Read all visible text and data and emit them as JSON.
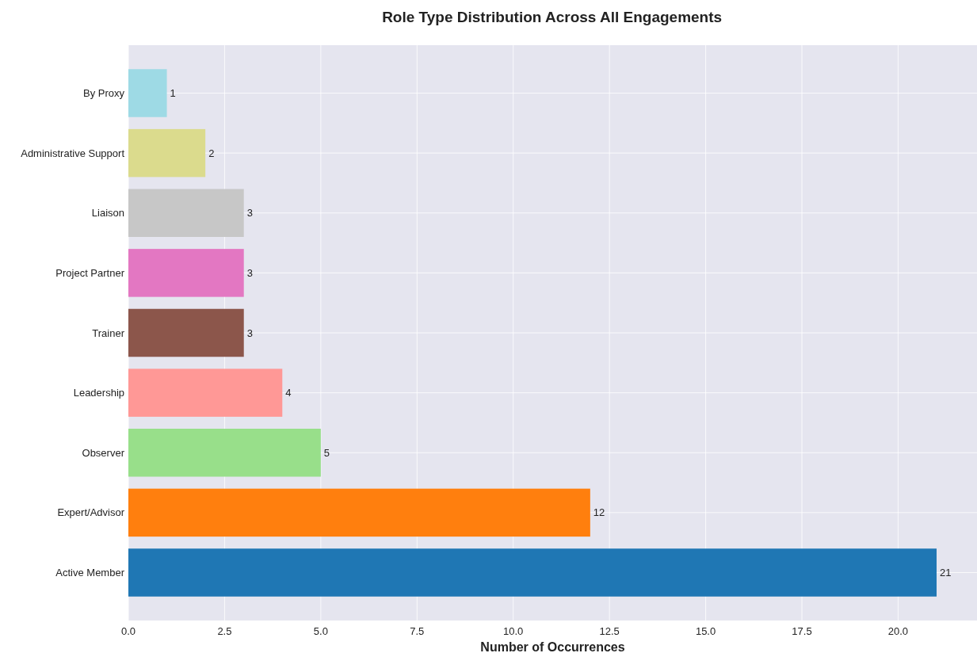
{
  "chart_data": {
    "type": "bar",
    "orientation": "horizontal",
    "title": "Role Type Distribution Across All Engagements",
    "xlabel": "Number of Occurrences",
    "categories": [
      "By Proxy",
      "Administrative Support",
      "Liaison",
      "Project Partner",
      "Trainer",
      "Leadership",
      "Observer",
      "Expert/Advisor",
      "Active Member"
    ],
    "values": [
      1,
      2,
      3,
      3,
      3,
      4,
      5,
      12,
      21
    ],
    "colors": [
      "#9edae5",
      "#dbdb8d",
      "#c7c7c7",
      "#e377c2",
      "#8c564b",
      "#ff9896",
      "#98df8a",
      "#ff7f0e",
      "#1f77b4"
    ],
    "xlim": [
      0,
      22.05
    ],
    "xticks": [
      {
        "value": 0,
        "label": "0.0"
      },
      {
        "value": 2.5,
        "label": "2.5"
      },
      {
        "value": 5,
        "label": "5.0"
      },
      {
        "value": 7.5,
        "label": "7.5"
      },
      {
        "value": 10,
        "label": "10.0"
      },
      {
        "value": 12.5,
        "label": "12.5"
      },
      {
        "value": 15,
        "label": "15.0"
      },
      {
        "value": 17.5,
        "label": "17.5"
      },
      {
        "value": 20,
        "label": "20.0"
      }
    ],
    "grid": true,
    "data_labels": true
  }
}
